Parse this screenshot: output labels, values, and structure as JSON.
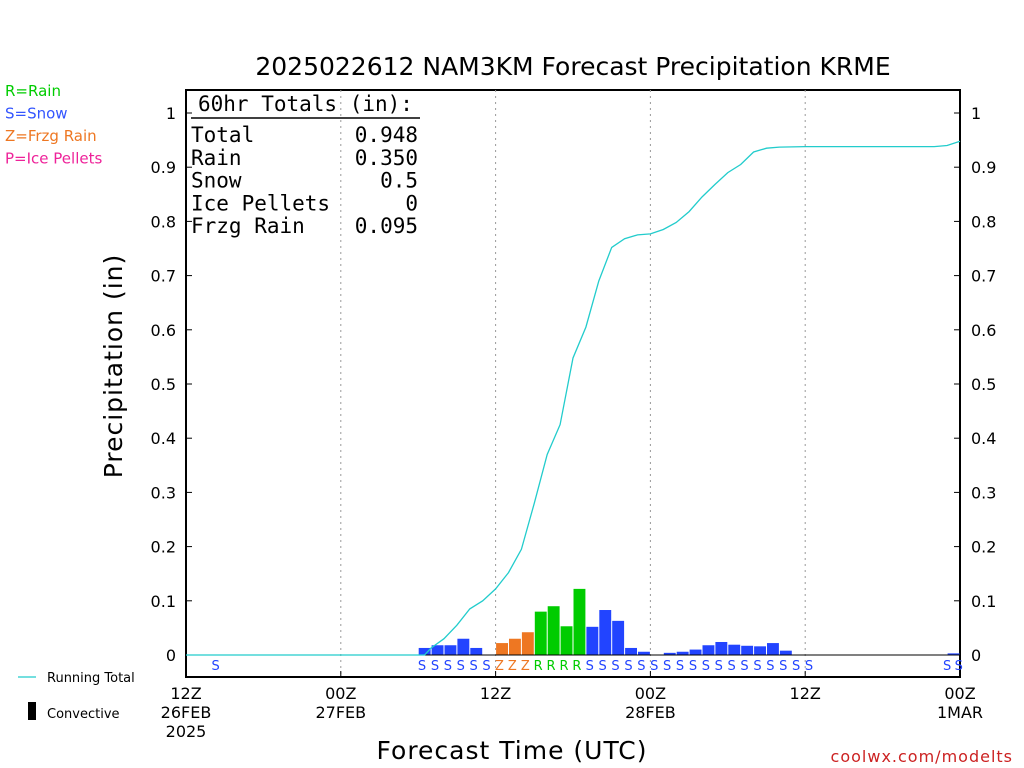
{
  "chart_data": {
    "type": "bar",
    "title": "2025022612 NAM3KM Forecast Precipitation KRME",
    "ylabel": "Precipitation (in)",
    "xlabel": "Forecast Time (UTC)",
    "ylim": [
      0,
      1.05
    ],
    "y_ticks": [
      0,
      0.1,
      0.2,
      0.3,
      0.4,
      0.5,
      0.6,
      0.7,
      0.8,
      0.9,
      1
    ],
    "y_tick_labels": [
      "0",
      "0.1",
      "0.2",
      "0.3",
      "0.4",
      "0.5",
      "0.6",
      "0.7",
      "0.8",
      "0.9",
      "1"
    ],
    "xlim_hours": [
      0,
      60
    ],
    "x_ticks": [
      {
        "hour": 0,
        "lines": [
          "12Z",
          "26FEB",
          "2025"
        ]
      },
      {
        "hour": 12,
        "lines": [
          "00Z",
          "27FEB"
        ]
      },
      {
        "hour": 24,
        "lines": [
          "12Z"
        ]
      },
      {
        "hour": 36,
        "lines": [
          "00Z",
          "28FEB"
        ]
      },
      {
        "hour": 48,
        "lines": [
          "12Z"
        ]
      },
      {
        "hour": 60,
        "lines": [
          "00Z",
          "1MAR"
        ]
      }
    ],
    "grid_vertical_dotted": true,
    "ptype_colors": {
      "R": "#00cc00",
      "S": "#2244ff",
      "Z": "#ee7722",
      "P": "#ee22aa"
    },
    "ptype_legend": [
      {
        "code": "R",
        "label": "R=Rain",
        "color": "#00cc00"
      },
      {
        "code": "S",
        "label": "S=Snow",
        "color": "#3355ff"
      },
      {
        "code": "Z",
        "label": "Z=Frzg Rain",
        "color": "#ee7722"
      },
      {
        "code": "P",
        "label": "P=Ice Pellets",
        "color": "#ee2299"
      }
    ],
    "totals": {
      "header": "60hr Totals (in):",
      "rows": [
        {
          "label": "Total",
          "value": "0.948"
        },
        {
          "label": "Rain",
          "value": "0.350"
        },
        {
          "label": "Snow",
          "value": "0.5"
        },
        {
          "label": "Ice Pellets",
          "value": "0"
        },
        {
          "label": "Frzg Rain",
          "value": "0.095"
        }
      ]
    },
    "bars": [
      {
        "hour": 19,
        "value": 0.013,
        "ptype": "S"
      },
      {
        "hour": 20,
        "value": 0.018,
        "ptype": "S"
      },
      {
        "hour": 21,
        "value": 0.018,
        "ptype": "S"
      },
      {
        "hour": 22,
        "value": 0.03,
        "ptype": "S"
      },
      {
        "hour": 23,
        "value": 0.013,
        "ptype": "S"
      },
      {
        "hour": 24,
        "value": 0.0,
        "ptype": "S"
      },
      {
        "hour": 25,
        "value": 0.022,
        "ptype": "Z"
      },
      {
        "hour": 26,
        "value": 0.03,
        "ptype": "Z"
      },
      {
        "hour": 27,
        "value": 0.042,
        "ptype": "Z"
      },
      {
        "hour": 28,
        "value": 0.08,
        "ptype": "R"
      },
      {
        "hour": 29,
        "value": 0.09,
        "ptype": "R"
      },
      {
        "hour": 30,
        "value": 0.053,
        "ptype": "R"
      },
      {
        "hour": 31,
        "value": 0.122,
        "ptype": "R"
      },
      {
        "hour": 32,
        "value": 0.052,
        "ptype": "S"
      },
      {
        "hour": 33,
        "value": 0.083,
        "ptype": "S"
      },
      {
        "hour": 34,
        "value": 0.063,
        "ptype": "S"
      },
      {
        "hour": 35,
        "value": 0.013,
        "ptype": "S"
      },
      {
        "hour": 36,
        "value": 0.006,
        "ptype": "S"
      },
      {
        "hour": 38,
        "value": 0.004,
        "ptype": "S"
      },
      {
        "hour": 39,
        "value": 0.006,
        "ptype": "S"
      },
      {
        "hour": 40,
        "value": 0.01,
        "ptype": "S"
      },
      {
        "hour": 41,
        "value": 0.018,
        "ptype": "S"
      },
      {
        "hour": 42,
        "value": 0.024,
        "ptype": "S"
      },
      {
        "hour": 43,
        "value": 0.019,
        "ptype": "S"
      },
      {
        "hour": 44,
        "value": 0.017,
        "ptype": "S"
      },
      {
        "hour": 45,
        "value": 0.016,
        "ptype": "S"
      },
      {
        "hour": 46,
        "value": 0.022,
        "ptype": "S"
      },
      {
        "hour": 47,
        "value": 0.008,
        "ptype": "S"
      },
      {
        "hour": 60,
        "value": 0.003,
        "ptype": "S"
      }
    ],
    "ptype_marks": [
      {
        "hour": 2.3,
        "code": "S"
      },
      {
        "hour": 18.3,
        "code": "S"
      },
      {
        "hour": 19.3,
        "code": "S"
      },
      {
        "hour": 20.3,
        "code": "S"
      },
      {
        "hour": 21.3,
        "code": "S"
      },
      {
        "hour": 22.3,
        "code": "S"
      },
      {
        "hour": 23.3,
        "code": "S"
      },
      {
        "hour": 24.3,
        "code": "Z"
      },
      {
        "hour": 25.3,
        "code": "Z"
      },
      {
        "hour": 26.3,
        "code": "Z"
      },
      {
        "hour": 27.3,
        "code": "R"
      },
      {
        "hour": 28.3,
        "code": "R"
      },
      {
        "hour": 29.3,
        "code": "R"
      },
      {
        "hour": 30.3,
        "code": "R"
      },
      {
        "hour": 31.3,
        "code": "S"
      },
      {
        "hour": 32.3,
        "code": "S"
      },
      {
        "hour": 33.3,
        "code": "S"
      },
      {
        "hour": 34.3,
        "code": "S"
      },
      {
        "hour": 35.3,
        "code": "S"
      },
      {
        "hour": 36.3,
        "code": "S"
      },
      {
        "hour": 37.3,
        "code": "S"
      },
      {
        "hour": 38.3,
        "code": "S"
      },
      {
        "hour": 39.3,
        "code": "S"
      },
      {
        "hour": 40.3,
        "code": "S"
      },
      {
        "hour": 41.3,
        "code": "S"
      },
      {
        "hour": 42.3,
        "code": "S"
      },
      {
        "hour": 43.3,
        "code": "S"
      },
      {
        "hour": 44.3,
        "code": "S"
      },
      {
        "hour": 45.3,
        "code": "S"
      },
      {
        "hour": 46.3,
        "code": "S"
      },
      {
        "hour": 47.3,
        "code": "S"
      },
      {
        "hour": 48.3,
        "code": "S"
      },
      {
        "hour": 59.0,
        "code": "S"
      },
      {
        "hour": 59.9,
        "code": "S"
      }
    ],
    "running_total": {
      "color": "#22cccc",
      "points": [
        [
          0,
          0.0
        ],
        [
          18.5,
          0.0
        ],
        [
          19,
          0.013
        ],
        [
          20,
          0.03
        ],
        [
          21,
          0.055
        ],
        [
          22,
          0.085
        ],
        [
          23,
          0.1
        ],
        [
          24,
          0.122
        ],
        [
          25,
          0.152
        ],
        [
          26,
          0.195
        ],
        [
          27,
          0.28
        ],
        [
          28,
          0.37
        ],
        [
          29,
          0.425
        ],
        [
          30,
          0.548
        ],
        [
          31,
          0.605
        ],
        [
          32,
          0.69
        ],
        [
          33,
          0.752
        ],
        [
          34,
          0.768
        ],
        [
          35,
          0.775
        ],
        [
          36,
          0.777
        ],
        [
          37,
          0.785
        ],
        [
          38,
          0.798
        ],
        [
          39,
          0.818
        ],
        [
          40,
          0.845
        ],
        [
          41,
          0.868
        ],
        [
          42,
          0.89
        ],
        [
          43,
          0.905
        ],
        [
          44,
          0.928
        ],
        [
          45,
          0.935
        ],
        [
          46,
          0.937
        ],
        [
          48,
          0.938
        ],
        [
          58,
          0.938
        ],
        [
          59,
          0.94
        ],
        [
          60,
          0.948
        ]
      ]
    },
    "key_legend": [
      {
        "label": "Running Total",
        "kind": "line",
        "color": "#22cccc"
      },
      {
        "label": "Convective",
        "kind": "bar",
        "color": "#000000"
      }
    ],
    "watermark": "coolwx.com/modelts"
  }
}
